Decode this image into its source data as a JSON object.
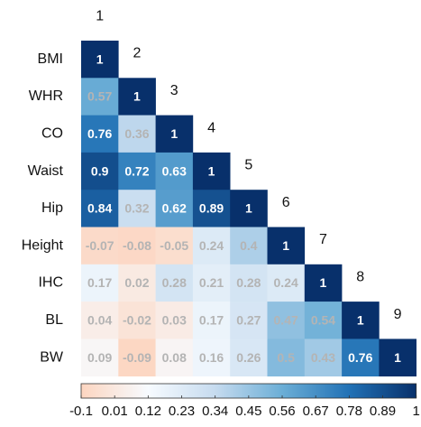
{
  "chart_data": {
    "type": "heatmap",
    "rows": [
      "BMI",
      "WHR",
      "CO",
      "Waist",
      "Hip",
      "Height",
      "IHC",
      "BL",
      "BW"
    ],
    "columns": [
      "1",
      "2",
      "3",
      "4",
      "5",
      "6",
      "7",
      "8",
      "9"
    ],
    "values": [
      [
        1
      ],
      [
        0.57,
        1
      ],
      [
        0.76,
        0.36,
        1
      ],
      [
        0.9,
        0.72,
        0.63,
        1
      ],
      [
        0.84,
        0.32,
        0.62,
        0.89,
        1
      ],
      [
        -0.07,
        -0.08,
        -0.05,
        0.24,
        0.4,
        1
      ],
      [
        0.17,
        0.02,
        0.28,
        0.21,
        0.28,
        0.24,
        1
      ],
      [
        0.04,
        -0.02,
        0.03,
        0.17,
        0.27,
        0.47,
        0.54,
        1
      ],
      [
        0.09,
        -0.09,
        0.08,
        0.16,
        0.26,
        0.5,
        0.43,
        0.76,
        1
      ]
    ],
    "clim": [
      -0.1,
      1
    ],
    "cticks": [
      -0.1,
      0.01,
      0.12,
      0.23,
      0.34,
      0.45,
      0.56,
      0.67,
      0.78,
      0.89,
      1
    ],
    "colormap": [
      "#fcd5c0",
      "#f7fbff",
      "#c6dbef",
      "#6baed6",
      "#2171b5",
      "#08306b"
    ]
  }
}
